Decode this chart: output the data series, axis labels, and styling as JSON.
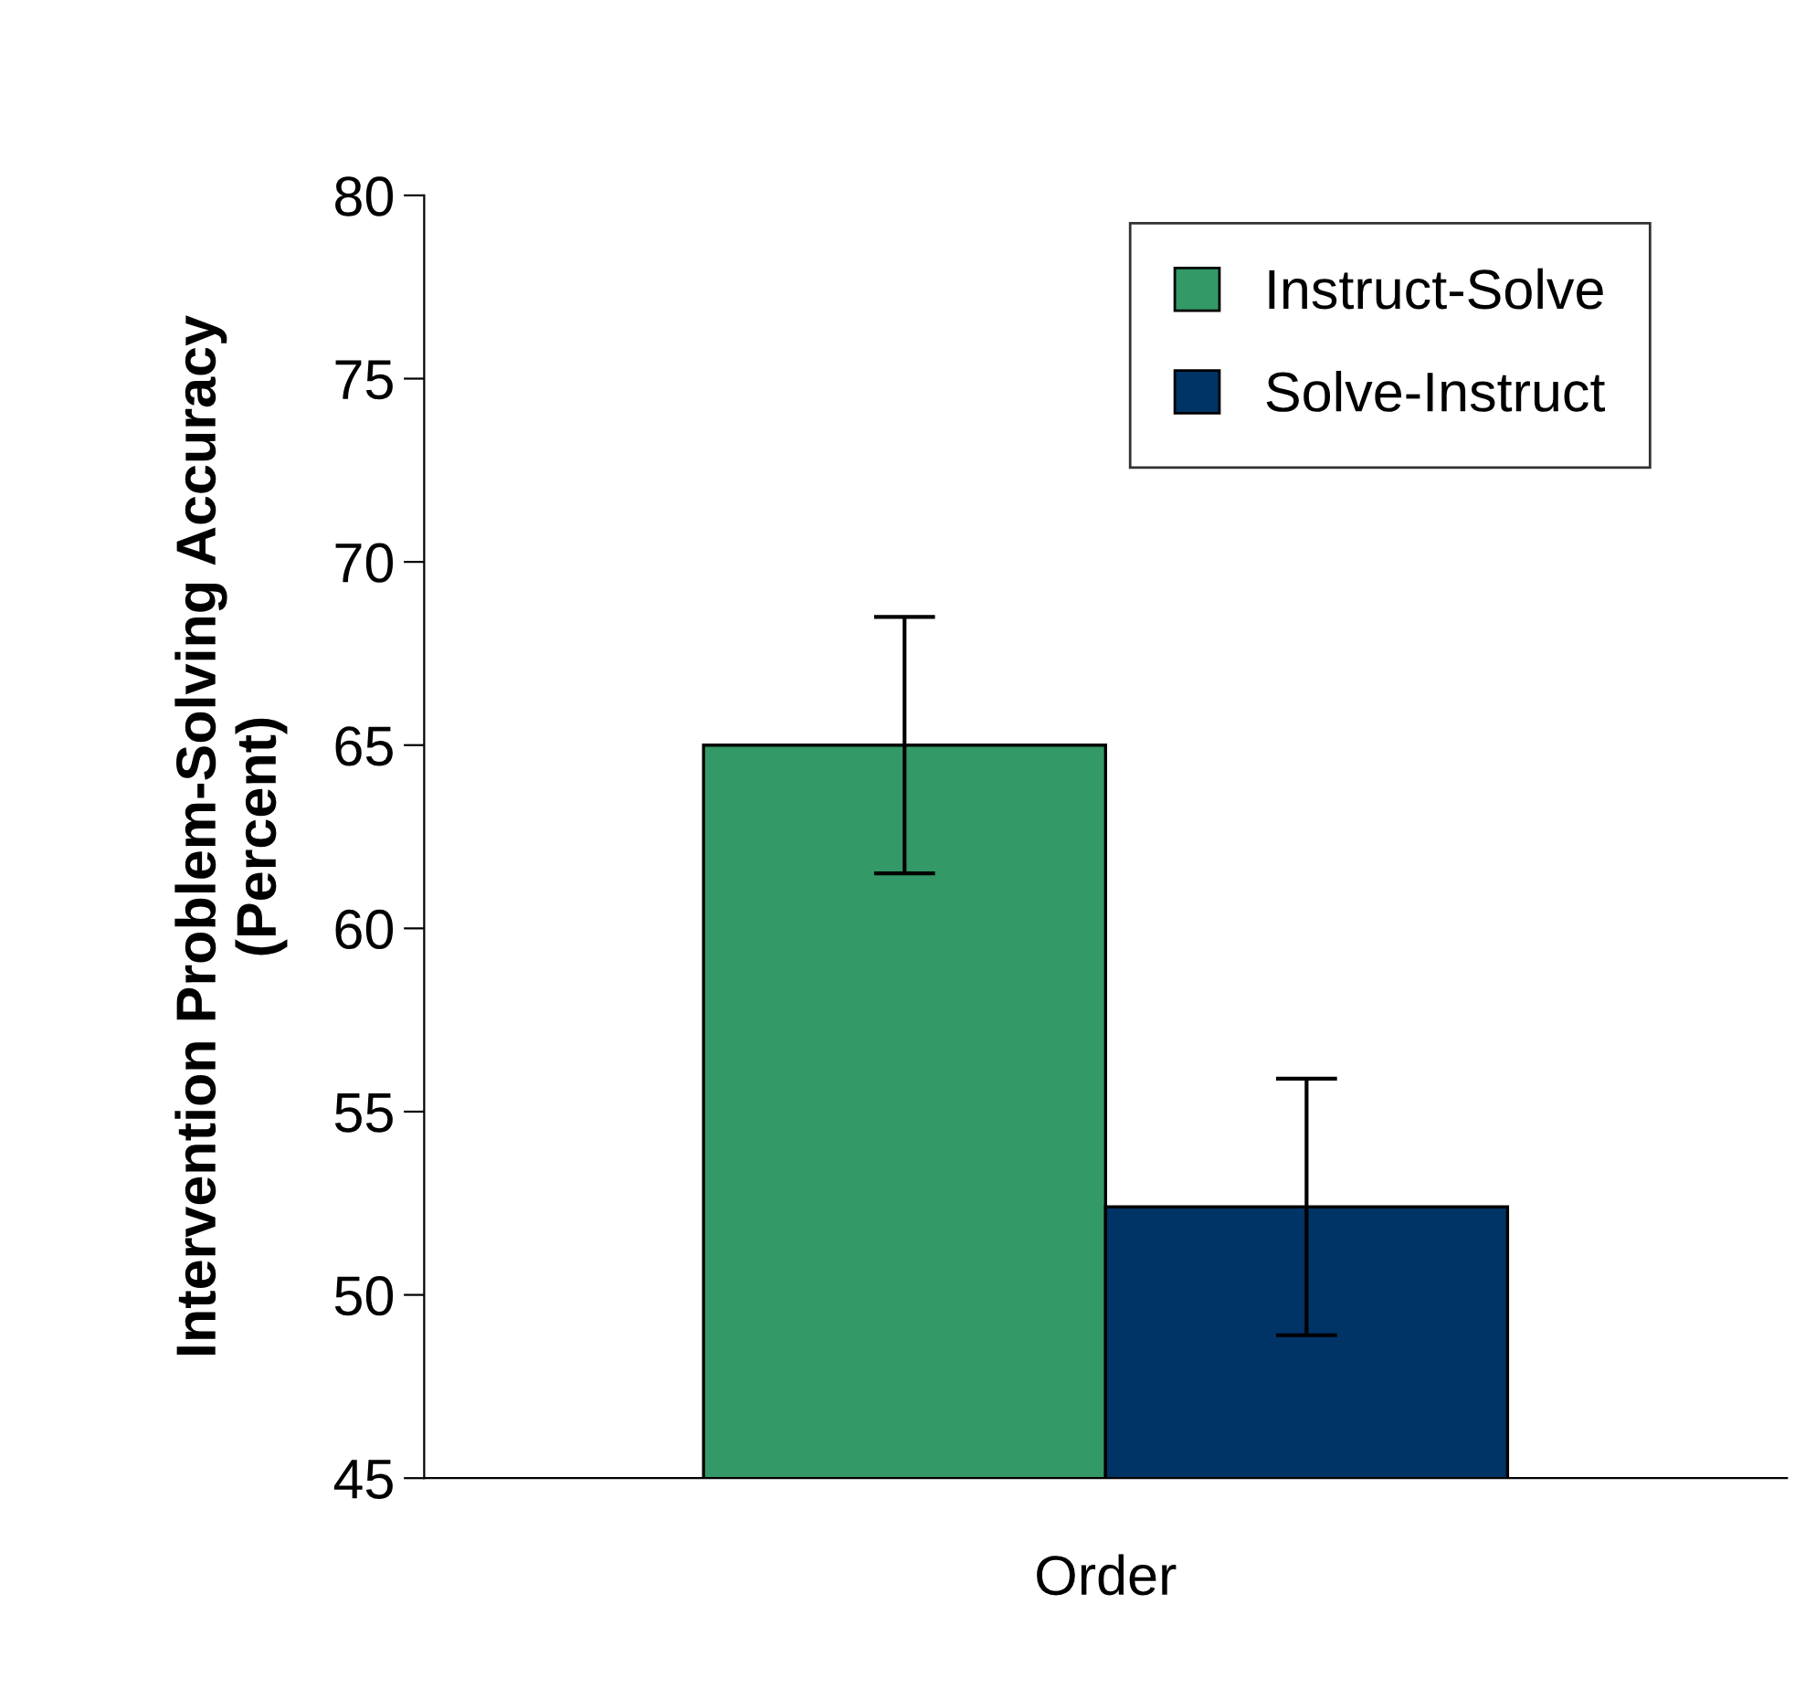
{
  "chart_data": {
    "type": "bar",
    "ylabel": "Intervention Problem-Solving Accuracy\n(Percent)",
    "categories": [
      "Order"
    ],
    "series": [
      {
        "name": "Instruct-Solve",
        "color": "#339966",
        "values": [
          65
        ],
        "errors": [
          [
            61.5,
            68.5
          ]
        ]
      },
      {
        "name": "Solve-Instruct",
        "color": "#003366",
        "values": [
          52.4
        ],
        "errors": [
          [
            48.9,
            55.9
          ]
        ]
      }
    ],
    "ylim": [
      45,
      80
    ],
    "yticks": [
      45,
      50,
      55,
      60,
      65,
      70,
      75,
      80
    ],
    "grid": false,
    "legend": "top right"
  }
}
